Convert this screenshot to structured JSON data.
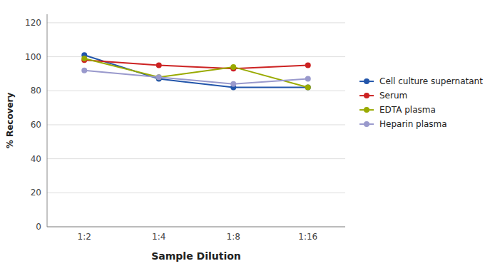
{
  "chart_data": {
    "type": "line",
    "categories": [
      "1:2",
      "1:4",
      "1:8",
      "1:16"
    ],
    "series": [
      {
        "name": "Cell culture supernatant",
        "color": "#2255aa",
        "marker": "circle",
        "values": [
          101,
          87,
          82,
          82
        ]
      },
      {
        "name": "Serum",
        "color": "#cc2222",
        "marker": "circle",
        "values": [
          98,
          95,
          93,
          95
        ]
      },
      {
        "name": "EDTA plasma",
        "color": "#99aa00",
        "marker": "circle",
        "values": [
          99,
          88,
          94,
          82
        ]
      },
      {
        "name": "Heparin plasma",
        "color": "#9999cc",
        "marker": "circle",
        "values": [
          92,
          88,
          84,
          87
        ]
      }
    ],
    "xlabel": "Sample Dilution",
    "ylabel": "% Recovery",
    "ylim": [
      0,
      125
    ],
    "yticks": [
      0,
      20,
      40,
      60,
      80,
      100,
      120
    ],
    "grid": true,
    "legend": "right"
  }
}
